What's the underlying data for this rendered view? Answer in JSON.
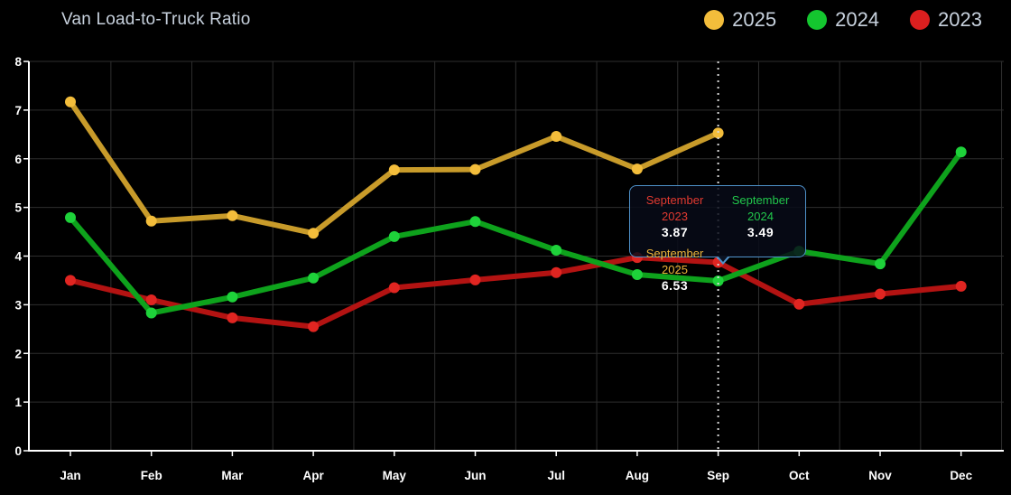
{
  "title": "Van Load-to-Truck Ratio",
  "legend": {
    "items": [
      {
        "label": "2025",
        "color": "#F3BD3B"
      },
      {
        "label": "2024",
        "color": "#14C62F"
      },
      {
        "label": "2023",
        "color": "#DC1F1F"
      }
    ]
  },
  "chart_data": {
    "type": "line",
    "title": "Van Load-to-Truck Ratio",
    "categories": [
      "Jan",
      "Feb",
      "Mar",
      "Apr",
      "May",
      "Jun",
      "Jul",
      "Aug",
      "Sep",
      "Oct",
      "Nov",
      "Dec"
    ],
    "xlabel": "",
    "ylabel": "",
    "ylim": [
      0,
      8
    ],
    "y_ticks": [
      0,
      1,
      2,
      3,
      4,
      5,
      6,
      7,
      8
    ],
    "grid": true,
    "legend_position": "top-right",
    "series": [
      {
        "name": "2025",
        "color": "#F3BD3B",
        "line_color": "#C89B2A",
        "values": [
          7.17,
          4.72,
          4.83,
          4.47,
          5.77,
          5.78,
          6.46,
          5.79,
          6.53,
          null,
          null,
          null
        ]
      },
      {
        "name": "2024",
        "color": "#1ED23A",
        "line_color": "#0EA21C",
        "values": [
          4.79,
          2.83,
          3.16,
          3.55,
          4.4,
          4.71,
          4.12,
          3.62,
          3.49,
          4.1,
          3.84,
          6.14
        ]
      },
      {
        "name": "2023",
        "color": "#E02521",
        "line_color": "#B31312",
        "values": [
          3.5,
          3.1,
          2.73,
          2.55,
          3.35,
          3.51,
          3.66,
          3.97,
          3.87,
          3.01,
          3.22,
          3.38
        ]
      }
    ],
    "crosshair_category": "Sep",
    "crosshair_index": 8,
    "axis_color": "#ffffff",
    "gridline_color": "#2e2e2e",
    "tick_label_color": "#ffffff"
  },
  "tooltip": {
    "entries": [
      {
        "label": "September 2023",
        "value": "3.87",
        "color": "#E23A30"
      },
      {
        "label": "September 2024",
        "value": "3.49",
        "color": "#21C74B"
      },
      {
        "label": "September 2025",
        "value": "6.53",
        "color": "#EBB339"
      }
    ]
  }
}
